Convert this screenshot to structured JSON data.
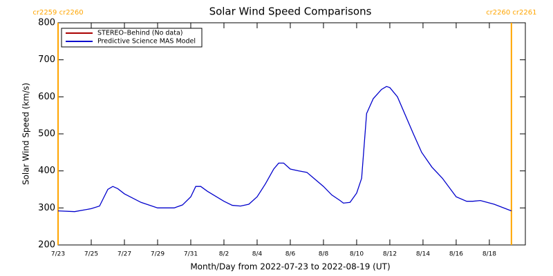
{
  "chart_data": {
    "type": "line",
    "title": "Solar Wind Speed Comparisons",
    "x_label": "Month/Day from 2022-07-23 to 2022-08-19 (UT)",
    "y_label": "Solar Wind Speed (km/s)",
    "x": [
      0,
      1,
      2,
      2.5,
      3,
      3.3,
      3.6,
      4,
      5,
      6,
      7,
      7.5,
      8,
      8.3,
      8.6,
      9,
      10,
      10.5,
      11,
      11.5,
      12,
      12.5,
      13,
      13.3,
      13.6,
      14,
      14.5,
      15,
      16,
      16.5,
      17,
      17.2,
      17.6,
      18,
      18.3,
      18.6,
      19,
      19.5,
      19.8,
      20,
      20.46,
      21.42,
      21.92,
      22.54,
      23.17,
      24,
      24.63,
      25,
      25.46,
      26.29,
      27.33
    ],
    "series": [
      {
        "name": "STEREO–Behind (No data)",
        "color": "#aa0000",
        "values": [
          null,
          null,
          null,
          null,
          null,
          null,
          null,
          null,
          null,
          null,
          null,
          null,
          null,
          null,
          null,
          null,
          null,
          null,
          null,
          null,
          null,
          null,
          null,
          null,
          null,
          null,
          null,
          null,
          null,
          null,
          null,
          null,
          null,
          null,
          null,
          null,
          null,
          null,
          null,
          null,
          null,
          null,
          null,
          null,
          null,
          null,
          null,
          null,
          null,
          null,
          null
        ]
      },
      {
        "name": "Predictive Science MAS Model",
        "color": "#0000cc",
        "values": [
          292,
          290,
          298,
          305,
          350,
          358,
          352,
          338,
          315,
          300,
          300,
          308,
          330,
          358,
          358,
          345,
          318,
          307,
          305,
          310,
          330,
          365,
          405,
          421,
          421,
          405,
          400,
          396,
          358,
          335,
          320,
          313,
          315,
          340,
          380,
          555,
          595,
          620,
          628,
          625,
          600,
          500,
          450,
          410,
          380,
          330,
          318,
          318,
          320,
          310,
          292
        ]
      }
    ],
    "xlim": [
      0,
      28.17
    ],
    "xticks": [
      {
        "value": 0,
        "label": "7/23"
      },
      {
        "value": 2,
        "label": "7/25"
      },
      {
        "value": 4,
        "label": "7/27"
      },
      {
        "value": 6,
        "label": "7/29"
      },
      {
        "value": 8,
        "label": "7/31"
      },
      {
        "value": 10,
        "label": "8/2"
      },
      {
        "value": 12,
        "label": "8/4"
      },
      {
        "value": 14,
        "label": "8/6"
      },
      {
        "value": 16,
        "label": "8/8"
      },
      {
        "value": 18,
        "label": "8/10"
      },
      {
        "value": 20,
        "label": "8/12"
      },
      {
        "value": 22,
        "label": "8/14"
      },
      {
        "value": 24,
        "label": "8/16"
      },
      {
        "value": 26,
        "label": "8/18"
      }
    ],
    "ylim": [
      200,
      800
    ],
    "yticks": [
      200,
      300,
      400,
      500,
      600,
      700,
      800
    ],
    "annotations": [
      {
        "x": 0,
        "label": "cr2259 cr2260",
        "color": "#ffa500"
      },
      {
        "x": 27.33,
        "label": "cr2260 cr2261",
        "color": "#ffa500"
      }
    ],
    "legend": "upper left"
  }
}
